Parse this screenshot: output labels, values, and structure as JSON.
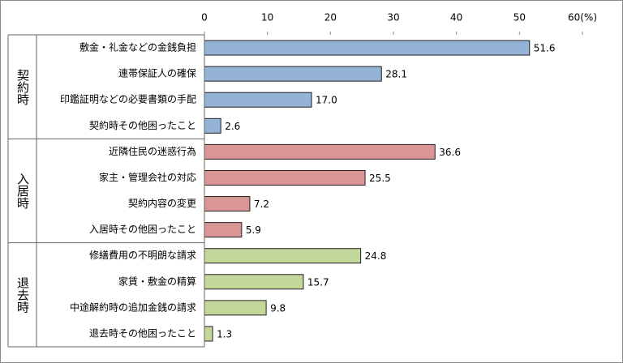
{
  "chart_data": {
    "type": "bar",
    "groups": [
      {
        "name": "契約時",
        "color": "#95b3d7",
        "categories": [
          "敷金・礼金などの金銭負担",
          "連帯保証人の確保",
          "印鑑証明などの必要書類の手配",
          "契約時その他困ったこと"
        ],
        "values": [
          51.6,
          28.1,
          17.0,
          2.6
        ],
        "value_labels": [
          "51.6",
          "28.1",
          "17.0",
          "2.6"
        ]
      },
      {
        "name": "入居時",
        "color": "#da9694",
        "categories": [
          "近隣住民の迷惑行為",
          "家主・管理会社の対応",
          "契約内容の変更",
          "入居時その他困ったこと"
        ],
        "values": [
          36.6,
          25.5,
          7.2,
          5.9
        ],
        "value_labels": [
          "36.6",
          "25.5",
          "7.2",
          "5.9"
        ]
      },
      {
        "name": "退去時",
        "color": "#c4d79b",
        "categories": [
          "修繕費用の不明朗な請求",
          "家賃・敷金の精算",
          "中途解約時の追加金銭の請求",
          "退去時その他困ったこと"
        ],
        "values": [
          24.8,
          15.7,
          9.8,
          1.3
        ],
        "value_labels": [
          "24.8",
          "15.7",
          "9.8",
          "1.3"
        ]
      }
    ],
    "xlim": [
      0,
      60
    ],
    "xticks": [
      0,
      10,
      20,
      30,
      40,
      50,
      {
        "value": 60,
        "label": "60(%)"
      }
    ]
  }
}
